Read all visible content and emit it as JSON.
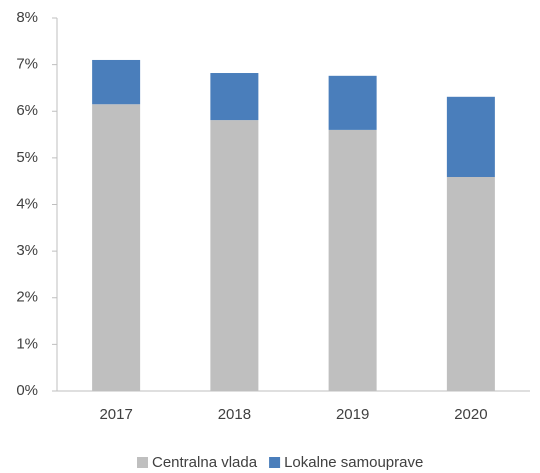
{
  "chart_data": {
    "type": "stacked_bar",
    "categories": [
      "2017",
      "2018",
      "2019",
      "2020"
    ],
    "series": [
      {
        "name": "Centralna vlada",
        "color": "#bfbfbf",
        "values": [
          6.15,
          5.81,
          5.6,
          4.59
        ]
      },
      {
        "name": "Lokalne samouprave",
        "color": "#4a7ebb",
        "values": [
          0.95,
          1.01,
          1.16,
          1.72
        ]
      }
    ],
    "ylim": [
      0,
      8
    ],
    "yticks": [
      {
        "value": 0,
        "label": "0%"
      },
      {
        "value": 1,
        "label": "1%"
      },
      {
        "value": 2,
        "label": "2%"
      },
      {
        "value": 3,
        "label": "3%"
      },
      {
        "value": 4,
        "label": "4%"
      },
      {
        "value": 5,
        "label": "5%"
      },
      {
        "value": 6,
        "label": "6%"
      },
      {
        "value": 7,
        "label": "7%"
      },
      {
        "value": 8,
        "label": "8%"
      }
    ],
    "legend": "bottom"
  }
}
